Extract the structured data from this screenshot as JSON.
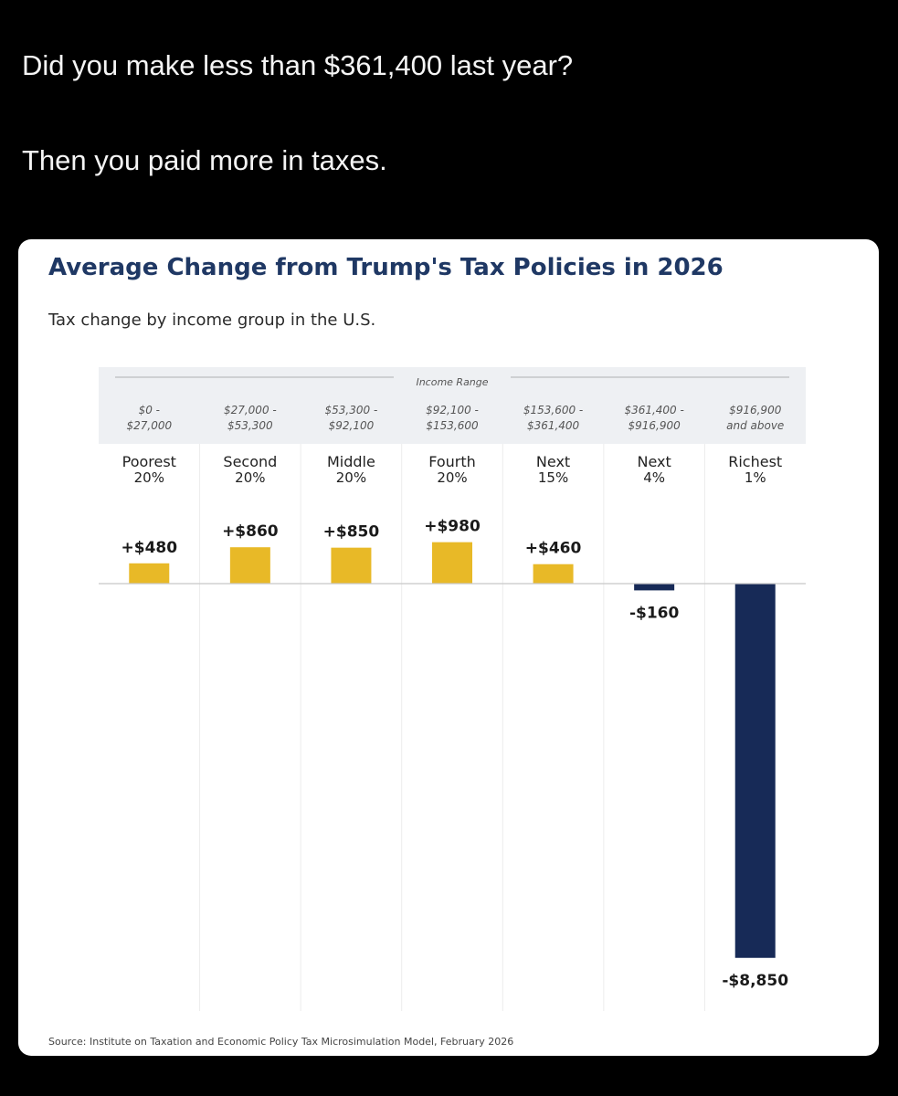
{
  "post": {
    "line1": "Did you make less than $361,400 last year?",
    "line2": "Then you paid more in taxes."
  },
  "colors": {
    "background": "#000000",
    "card": "#ffffff",
    "title": "#1f3864",
    "positive_bar": "#e8b927",
    "negative_bar": "#172a57",
    "header_band": "#eef0f3"
  },
  "chart_data": {
    "type": "bar",
    "title": "Average Change from Trump's Tax Policies in 2026",
    "subtitle": "Tax change by income group in the U.S.",
    "header_label": "Income Range",
    "unit": "USD",
    "categories": [
      {
        "range_line1": "$0 -",
        "range_line2": "$27,000",
        "group_line1": "Poorest",
        "group_line2": "20%",
        "value": 480,
        "label": "+$480"
      },
      {
        "range_line1": "$27,000 -",
        "range_line2": "$53,300",
        "group_line1": "Second",
        "group_line2": "20%",
        "value": 860,
        "label": "+$860"
      },
      {
        "range_line1": "$53,300 -",
        "range_line2": "$92,100",
        "group_line1": "Middle",
        "group_line2": "20%",
        "value": 850,
        "label": "+$850"
      },
      {
        "range_line1": "$92,100 -",
        "range_line2": "$153,600",
        "group_line1": "Fourth",
        "group_line2": "20%",
        "value": 980,
        "label": "+$980"
      },
      {
        "range_line1": "$153,600 -",
        "range_line2": "$361,400",
        "group_line1": "Next",
        "group_line2": "15%",
        "value": 460,
        "label": "+$460"
      },
      {
        "range_line1": "$361,400 -",
        "range_line2": "$916,900",
        "group_line1": "Next",
        "group_line2": "4%",
        "value": -160,
        "label": "-$160"
      },
      {
        "range_line1": "$916,900",
        "range_line2": "and above",
        "group_line1": "Richest",
        "group_line2": "1%",
        "value": -8850,
        "label": "-$8,850"
      }
    ],
    "source": "Source: Institute on Taxation and Economic Policy Tax Microsimulation Model, February 2026"
  }
}
